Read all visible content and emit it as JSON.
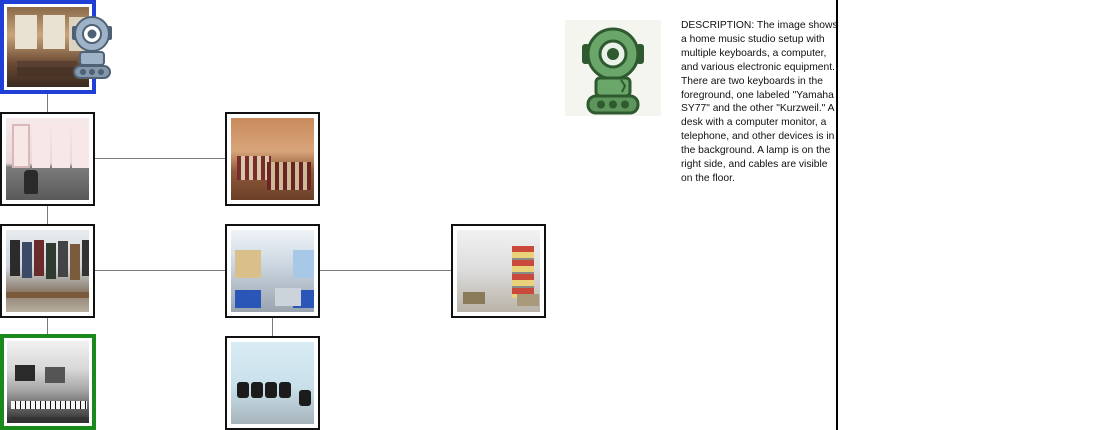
{
  "map": {
    "rooms": [
      {
        "id": "hall",
        "name": "room-hall",
        "state": "current"
      },
      {
        "id": "lockers",
        "name": "room-lockers",
        "state": "normal"
      },
      {
        "id": "bedroom",
        "name": "room-bedroom",
        "state": "normal"
      },
      {
        "id": "coats",
        "name": "room-coats",
        "state": "normal"
      },
      {
        "id": "classroom",
        "name": "room-classroom",
        "state": "normal"
      },
      {
        "id": "warehouse",
        "name": "room-warehouse",
        "state": "normal"
      },
      {
        "id": "studio",
        "name": "room-studio",
        "state": "target"
      },
      {
        "id": "waiting",
        "name": "room-waiting",
        "state": "normal"
      }
    ],
    "agent_icon": "robot-icon",
    "highlight_colors": {
      "current": "#1f3fd6",
      "target": "#1a8a1a"
    }
  },
  "panel": {
    "portrait_icon": "robot-icon",
    "description": "DESCRIPTION: The image shows a home music studio setup with multiple keyboards, a computer, and various electronic equipment. There are two keyboards in the foreground, one labeled \"Yamaha SY77\" and the other \"Kurzweil.\" A desk with a computer monitor, a telephone, and other devices is in the background. A lamp is on the right side, and cables are visible on the floor."
  }
}
